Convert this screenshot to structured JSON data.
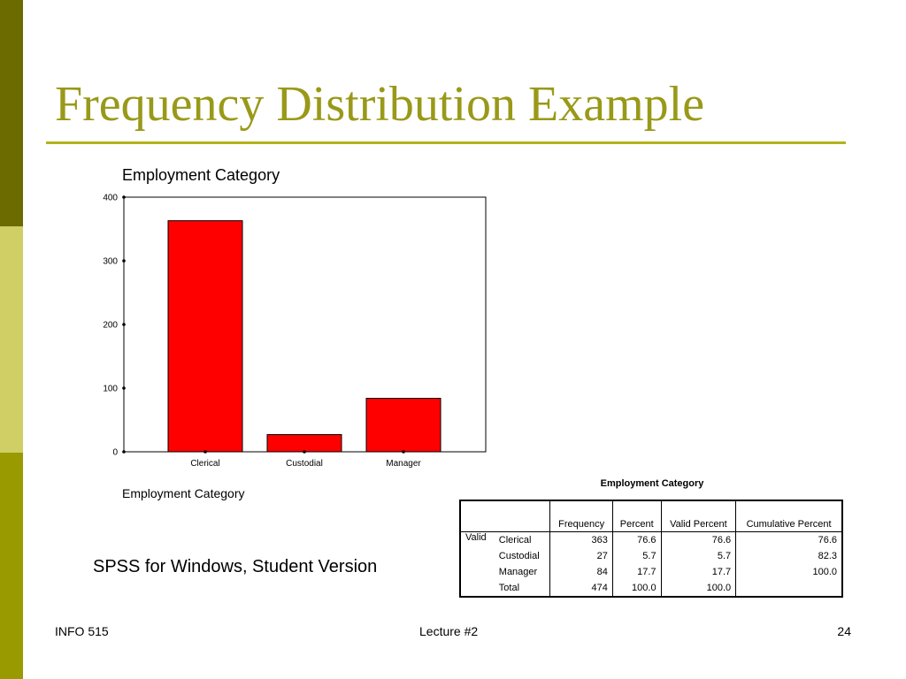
{
  "colors": {
    "strip_top": "#6b6b00",
    "strip_mid": "#cfcf66",
    "strip_bot": "#999900",
    "title": "#999919",
    "rule": "#b3b31a",
    "bar": "#ff0000"
  },
  "slide": {
    "title": "Frequency Distribution Example",
    "watermark": "SPSS for Windows, Student Version"
  },
  "chart_data": {
    "type": "bar",
    "title": "Employment Category",
    "caption": "Employment Category",
    "categories": [
      "Clerical",
      "Custodial",
      "Manager"
    ],
    "values": [
      363,
      27,
      84
    ],
    "ylim": [
      0,
      400
    ],
    "yticks": [
      "0",
      "100",
      "200",
      "300",
      "400"
    ],
    "grid": false
  },
  "table": {
    "title": "Employment Category",
    "headers": [
      "Frequency",
      "Percent",
      "Valid Percent",
      "Cumulative Percent"
    ],
    "row_group": "Valid",
    "rows": [
      {
        "label": "Clerical",
        "frequency": "363",
        "percent": "76.6",
        "valid_percent": "76.6",
        "cumulative": "76.6"
      },
      {
        "label": "Custodial",
        "frequency": "27",
        "percent": "5.7",
        "valid_percent": "5.7",
        "cumulative": "82.3"
      },
      {
        "label": "Manager",
        "frequency": "84",
        "percent": "17.7",
        "valid_percent": "17.7",
        "cumulative": "100.0"
      },
      {
        "label": "Total",
        "frequency": "474",
        "percent": "100.0",
        "valid_percent": "100.0",
        "cumulative": ""
      }
    ]
  },
  "footer": {
    "left": "INFO 515",
    "center": "Lecture #2",
    "right": "24"
  }
}
